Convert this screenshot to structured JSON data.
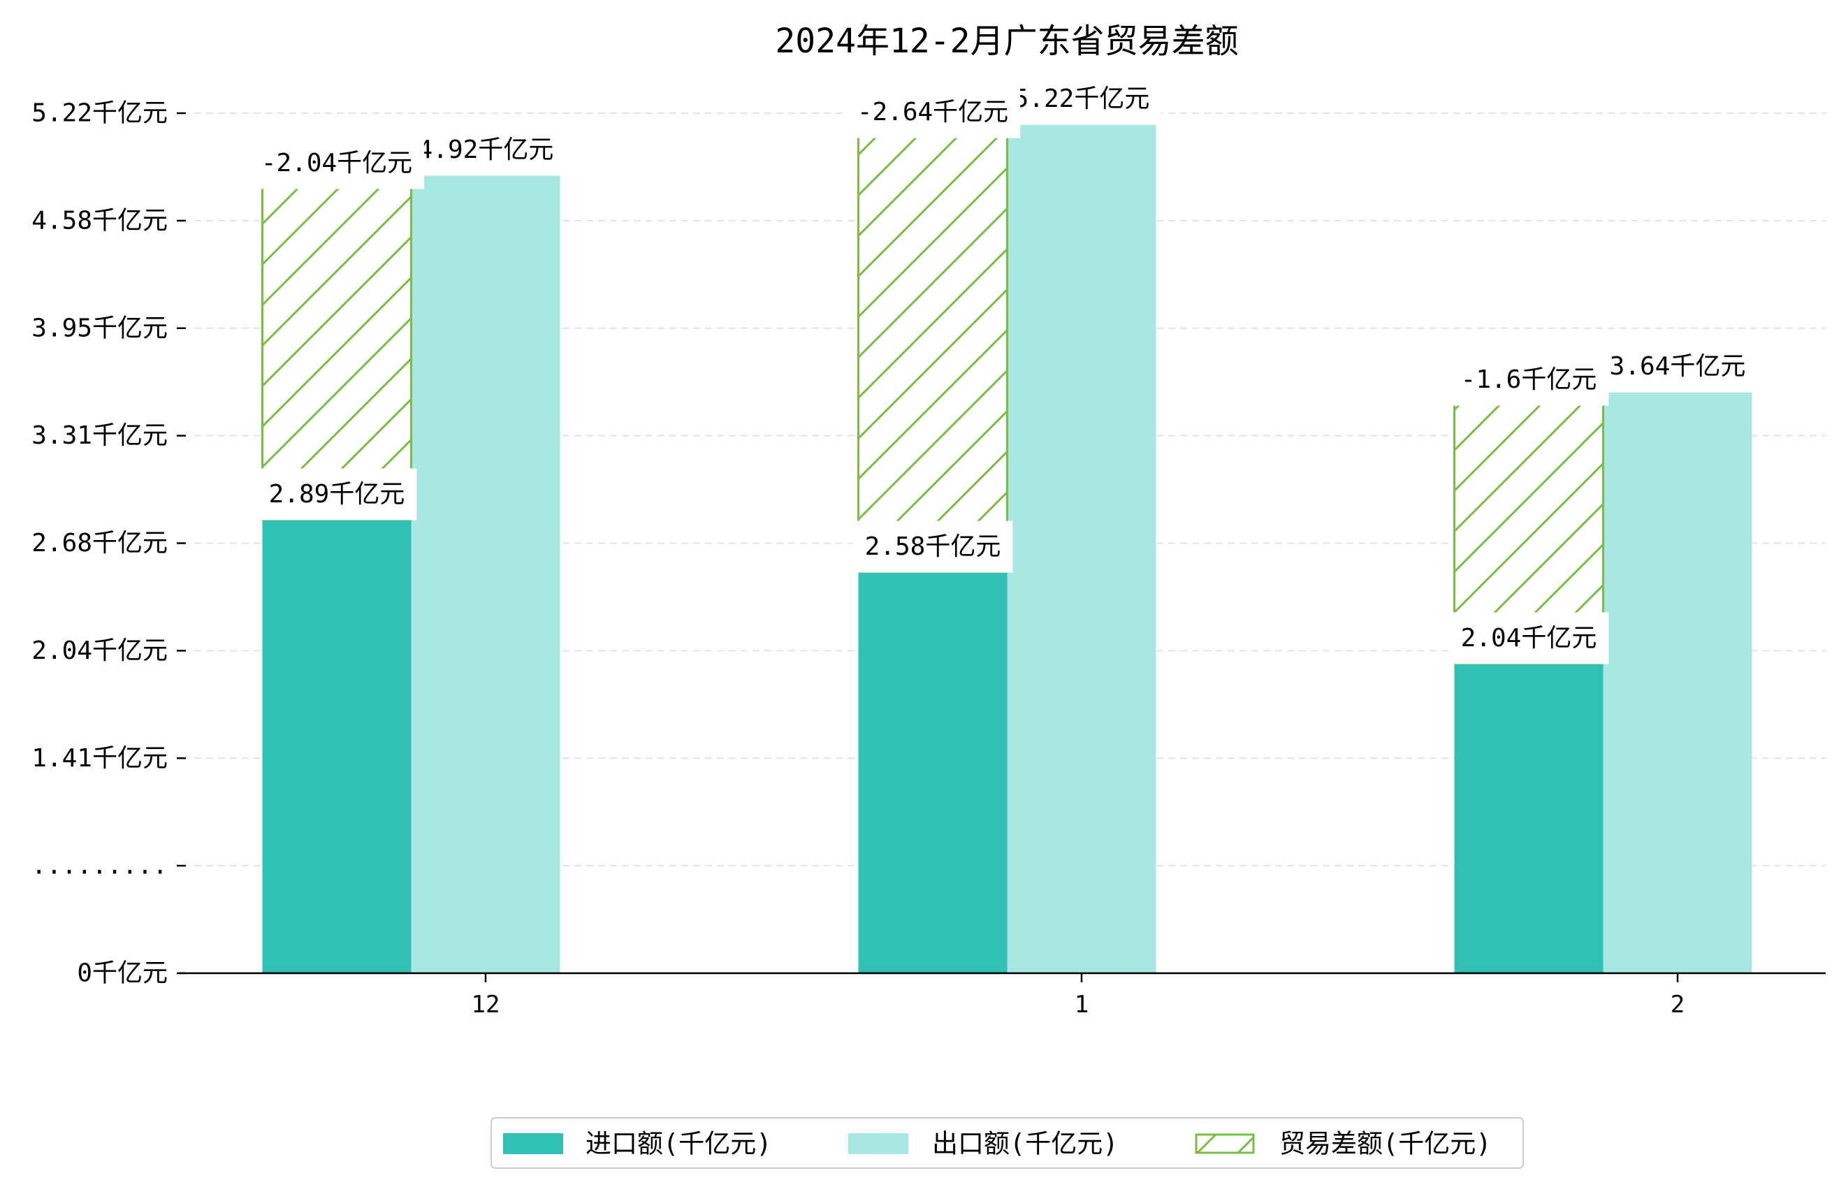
{
  "chart_data": {
    "type": "bar",
    "title": "2024年12-2月广东省贸易差额",
    "categories": [
      "12",
      "1",
      "2"
    ],
    "unit": "千亿元",
    "series": [
      {
        "name": "进口额(千亿元)",
        "values": [
          2.89,
          2.58,
          2.04
        ],
        "color": "#30c1b4"
      },
      {
        "name": "出口额(千亿元)",
        "values": [
          4.92,
          5.22,
          3.64
        ],
        "color": "#a9e8e2"
      },
      {
        "name": "贸易差额(千亿元)",
        "values": [
          -2.04,
          -2.64,
          -1.6
        ],
        "color": "#7abd45",
        "hatched": true,
        "stacked_on_series": 0
      }
    ],
    "yticks": [
      "0千亿元",
      ".........",
      "1.41千亿元",
      "2.04千亿元",
      "2.68千亿元",
      "3.31千亿元",
      "3.95千亿元",
      "4.58千亿元",
      "5.22千亿元"
    ],
    "ylim": [
      0,
      5.22
    ],
    "y_axis_break": true,
    "grid": true,
    "legend": "bottom-center"
  }
}
